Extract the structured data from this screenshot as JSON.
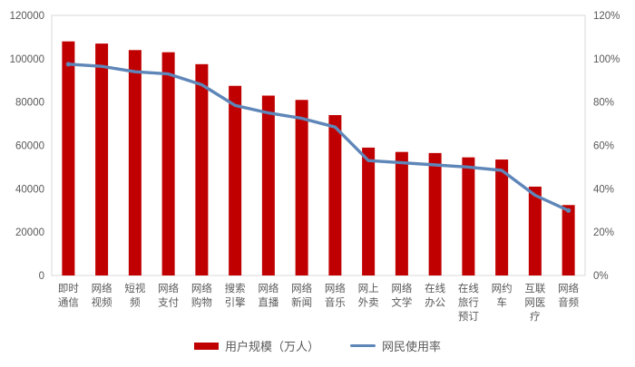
{
  "chart_data": {
    "type": "bar",
    "subtype": "bar-line-combo",
    "title": "",
    "categories": [
      "即时通信",
      "网络视频",
      "短视频",
      "网络支付",
      "网络购物",
      "搜索引擎",
      "网络直播",
      "网络新闻",
      "网络音乐",
      "网上外卖",
      "网络文学",
      "在线办公",
      "在线旅行预订",
      "网约车",
      "互联网医疗",
      "网络音频"
    ],
    "category_label_lines": [
      [
        "即时",
        "通信"
      ],
      [
        "网络",
        "视频"
      ],
      [
        "短视",
        "频"
      ],
      [
        "网络",
        "支付"
      ],
      [
        "网络",
        "购物"
      ],
      [
        "搜索",
        "引擎"
      ],
      [
        "网络",
        "直播"
      ],
      [
        "网络",
        "新闻"
      ],
      [
        "网络",
        "音乐"
      ],
      [
        "网上",
        "外卖"
      ],
      [
        "网络",
        "文学"
      ],
      [
        "在线",
        "办公"
      ],
      [
        "在线",
        "旅行",
        "预订"
      ],
      [
        "网约",
        "车"
      ],
      [
        "互联",
        "网医",
        "疗"
      ],
      [
        "网络",
        "音频"
      ]
    ],
    "series": [
      {
        "name": "用户规模（万人）",
        "kind": "bar",
        "axis": "left",
        "color": "#c00000",
        "values": [
          108000,
          107000,
          104000,
          103000,
          97500,
          87500,
          83000,
          81000,
          74000,
          59000,
          57000,
          56500,
          54500,
          53500,
          41000,
          32500
        ]
      },
      {
        "name": "网民使用率",
        "kind": "line",
        "axis": "right",
        "color": "#5e86b8",
        "values": [
          97.5,
          96.5,
          94,
          93,
          88,
          78.5,
          75,
          72.5,
          68.5,
          53,
          52,
          51,
          50,
          48.5,
          37,
          30
        ]
      }
    ],
    "left_axis": {
      "min": 0,
      "max": 120000,
      "step": 20000,
      "tick_labels": [
        "0",
        "20000",
        "40000",
        "60000",
        "80000",
        "100000",
        "120000"
      ]
    },
    "right_axis": {
      "min": 0,
      "max": 120,
      "step": 20,
      "tick_labels": [
        "0%",
        "20%",
        "40%",
        "60%",
        "80%",
        "100%",
        "120%"
      ]
    },
    "grid": false,
    "legend_position": "bottom",
    "plot_border_color": "#d9d9d9",
    "tick_label_color": "#595959"
  }
}
